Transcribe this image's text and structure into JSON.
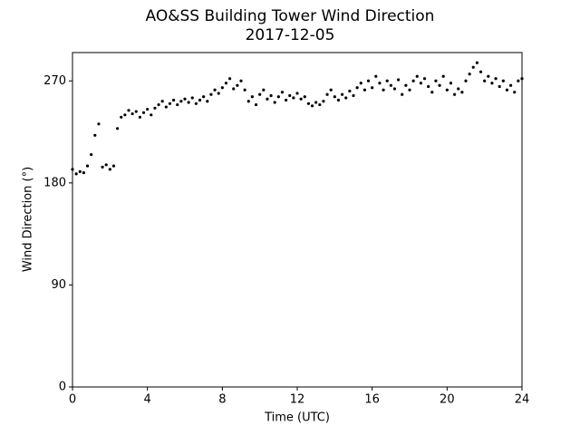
{
  "chart_data": {
    "type": "scatter",
    "title": "AO&SS Building Tower Wind Direction",
    "subtitle": "2017-12-05",
    "x_label": "Time (UTC)",
    "y_label": "Wind Direction (°)",
    "color": "#000000",
    "xlim": [
      0,
      24
    ],
    "xticks": [
      0,
      4,
      8,
      12,
      16,
      20,
      24
    ],
    "ylim": [
      0,
      295
    ],
    "yticks": [
      0,
      90,
      180,
      270
    ],
    "x": [
      0,
      0.2,
      0.4,
      0.6,
      0.8,
      1,
      1.2,
      1.4,
      1.6,
      1.8,
      2,
      2.2,
      2.4,
      2.6,
      2.8,
      3,
      3.2,
      3.4,
      3.6,
      3.8,
      4,
      4.2,
      4.4,
      4.6,
      4.8,
      5,
      5.2,
      5.4,
      5.6,
      5.8,
      6,
      6.2,
      6.4,
      6.6,
      6.8,
      7,
      7.2,
      7.4,
      7.6,
      7.8,
      8,
      8.2,
      8.4,
      8.6,
      8.8,
      9,
      9.2,
      9.4,
      9.6,
      9.8,
      10,
      10.2,
      10.4,
      10.6,
      10.8,
      11,
      11.2,
      11.4,
      11.6,
      11.8,
      12,
      12.2,
      12.4,
      12.6,
      12.8,
      13,
      13.2,
      13.4,
      13.6,
      13.8,
      14,
      14.2,
      14.4,
      14.6,
      14.8,
      15,
      15.2,
      15.4,
      15.6,
      15.8,
      16,
      16.2,
      16.4,
      16.6,
      16.8,
      17,
      17.2,
      17.4,
      17.6,
      17.8,
      18,
      18.2,
      18.4,
      18.6,
      18.8,
      19,
      19.2,
      19.4,
      19.6,
      19.8,
      20,
      20.2,
      20.4,
      20.6,
      20.8,
      21,
      21.2,
      21.4,
      21.6,
      21.8,
      22,
      22.2,
      22.4,
      22.6,
      22.8,
      23,
      23.2,
      23.4,
      23.6,
      23.8,
      24
    ],
    "values": [
      192,
      188,
      190,
      189,
      195,
      205,
      222,
      232,
      194,
      196,
      192,
      195,
      228,
      238,
      240,
      244,
      241,
      243,
      238,
      242,
      245,
      240,
      246,
      249,
      252,
      247,
      250,
      253,
      249,
      252,
      254,
      251,
      255,
      250,
      253,
      256,
      252,
      258,
      262,
      259,
      264,
      268,
      272,
      263,
      266,
      270,
      262,
      252,
      256,
      249,
      258,
      262,
      254,
      257,
      251,
      256,
      260,
      253,
      257,
      255,
      259,
      254,
      256,
      250,
      248,
      251,
      249,
      252,
      258,
      262,
      256,
      253,
      258,
      255,
      261,
      257,
      264,
      268,
      262,
      270,
      264,
      274,
      268,
      262,
      270,
      266,
      263,
      271,
      258,
      266,
      262,
      270,
      274,
      268,
      272,
      265,
      260,
      270,
      266,
      274,
      262,
      268,
      258,
      263,
      260,
      270,
      276,
      282,
      286,
      278,
      270,
      274,
      268,
      272,
      265,
      270,
      262,
      266,
      260,
      270,
      272
    ]
  }
}
